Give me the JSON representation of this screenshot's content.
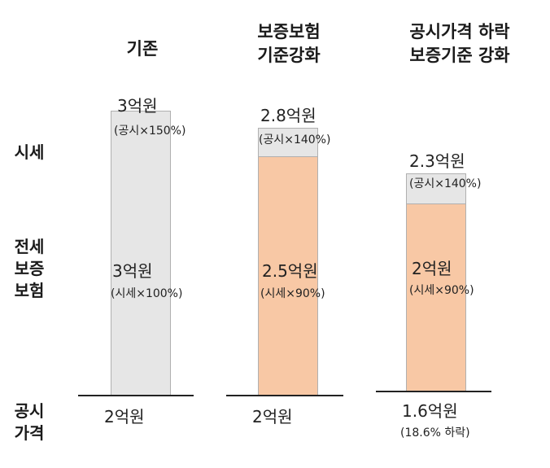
{
  "columns": [
    {
      "header": [
        "기존"
      ],
      "market_value": "3억원",
      "market_note": "(공시×150%)",
      "insurance_value": "3억원",
      "insurance_note": "(시세×100%)",
      "official_price": "2억원",
      "official_note": ""
    },
    {
      "header": [
        "보증보험",
        "기준강화"
      ],
      "market_value": "2.8억원",
      "market_note": "(공시×140%)",
      "insurance_value": "2.5억원",
      "insurance_note": "(시세×90%)",
      "official_price": "2억원",
      "official_note": ""
    },
    {
      "header": [
        "공시가격 하락",
        "보증기준 강화"
      ],
      "market_value": "2.3억원",
      "market_note": "(공시×140%)",
      "insurance_value": "2억원",
      "insurance_note": "(시세×90%)",
      "official_price": "1.6억원",
      "official_note": "(18.6% 하락)"
    }
  ],
  "row_labels": {
    "market": [
      "시세"
    ],
    "insurance": [
      "전세",
      "보증",
      "보험"
    ],
    "official": [
      "공시",
      "가격"
    ]
  },
  "colors": {
    "gray_fill": "#e6e6e6",
    "peach_fill": "#f8c8a5",
    "border": "#b0b0b0"
  }
}
